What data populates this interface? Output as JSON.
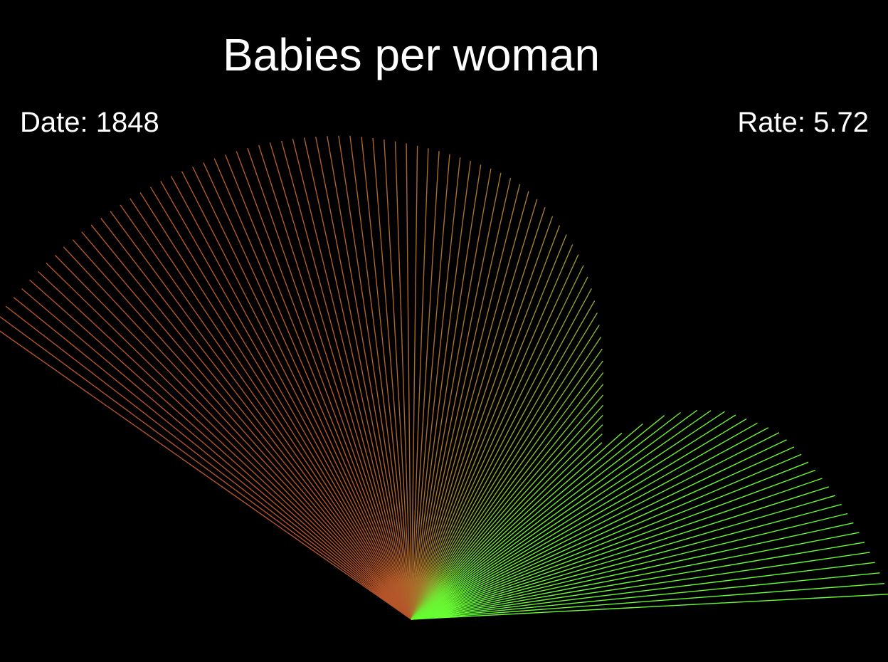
{
  "title": "Babies per woman",
  "date_label": "Date:",
  "date_value": "1848",
  "rate_label": "Rate:",
  "rate_value": "5.72",
  "colors": {
    "background": "#000000",
    "text": "#ffffff",
    "high_rate_color": "#b5542a",
    "low_rate_color": "#66ff33"
  },
  "chart_data": {
    "type": "line",
    "title": "Babies per woman",
    "xlabel": "",
    "ylabel": "",
    "series": [
      {
        "values": [
          5.72,
          5.72,
          5.72,
          5.71,
          5.7,
          5.7,
          5.69,
          5.69,
          5.68,
          5.68,
          5.67,
          5.67,
          5.66,
          5.65,
          5.65,
          5.64,
          5.64,
          5.63,
          5.62,
          5.62,
          5.61,
          5.6,
          5.59,
          5.58,
          5.57,
          5.56,
          5.55,
          5.54,
          5.53,
          5.52,
          5.5,
          5.49,
          5.47,
          5.45,
          5.43,
          5.41,
          5.39,
          5.36,
          5.33,
          5.3,
          5.27,
          5.24,
          5.21,
          5.18,
          5.15,
          5.12,
          5.09,
          5.06,
          5.03,
          5.0,
          4.97,
          4.93,
          4.88,
          4.82,
          4.75,
          4.68,
          4.6,
          4.52,
          4.44,
          4.35,
          4.26,
          4.16,
          4.05,
          3.94,
          3.82,
          3.7,
          3.58,
          3.46,
          3.34,
          3.22,
          3.1,
          2.98,
          2.87,
          2.77,
          2.67,
          2.58,
          2.49,
          2.41,
          2.34,
          2.28,
          2.22,
          2.18,
          2.14,
          2.11,
          2.08,
          2.06,
          2.04,
          2.02,
          2.0,
          1.98,
          1.97,
          1.96,
          1.95,
          1.94,
          1.93,
          1.92,
          1.91,
          1.9,
          1.89,
          1.88,
          1.87,
          1.86,
          1.85,
          1.84,
          1.83,
          1.82,
          1.81,
          1.8
        ]
      }
    ]
  }
}
